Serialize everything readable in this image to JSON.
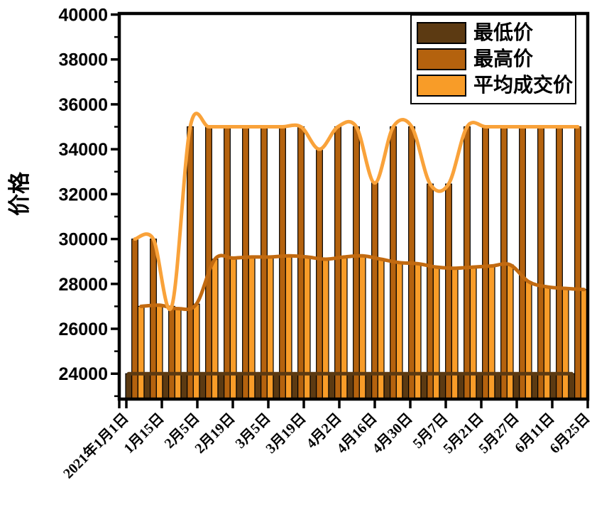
{
  "page": {
    "background": "#ffffff"
  },
  "chart_data": {
    "type": "bar",
    "overlay": "smoothed-line-per-series",
    "title": "",
    "xlabel": "",
    "ylabel": "价格",
    "ylim": [
      22900,
      40000
    ],
    "yticks": [
      24000,
      26000,
      28000,
      30000,
      32000,
      34000,
      36000,
      38000,
      40000
    ],
    "minor_ytick_step": 1000,
    "grid": false,
    "x_tick_labels": [
      "2021年1月1日",
      "1月15日",
      "2月5日",
      "2月19日",
      "3月5日",
      "3月19日",
      "4月2日",
      "4月16日",
      "4月30日",
      "5月7日",
      "5月21日",
      "5月27日",
      "6月11日",
      "6月25日"
    ],
    "x_labels_rotation": -45,
    "legend": {
      "position": "top-right",
      "entries": [
        "最低价",
        "最高价",
        "平均成交价"
      ]
    },
    "series": [
      {
        "name": "最低价",
        "bar_color": "#5C3A12",
        "line_color": "#5C3A12",
        "values": [
          24000,
          24000,
          24000,
          24000,
          24000,
          24000,
          24000,
          24000,
          24000,
          24000,
          24000,
          24000,
          24000,
          24000,
          24000,
          24000,
          24000,
          24000,
          24000,
          24000,
          24000,
          24000,
          24000,
          24000,
          24000
        ]
      },
      {
        "name": "最高价",
        "bar_color": "#B4620E",
        "line_color": "#F9A23A",
        "values": [
          30000,
          30000,
          27000,
          35000,
          35000,
          35000,
          35000,
          35000,
          35000,
          35000,
          34000,
          35000,
          35000,
          32500,
          35000,
          35000,
          32450,
          32450,
          35000,
          35000,
          35000,
          35000,
          35000,
          35000,
          35000
        ]
      },
      {
        "name": "平均成交价",
        "bar_color": "#F89C28",
        "line_color": "#C26A10",
        "values": [
          27000,
          27050,
          26900,
          27100,
          29100,
          29150,
          29200,
          29200,
          29250,
          29200,
          29100,
          29200,
          29250,
          29100,
          28950,
          28900,
          28750,
          28700,
          28750,
          28800,
          28850,
          28100,
          27870,
          27800,
          27750
        ]
      }
    ]
  }
}
